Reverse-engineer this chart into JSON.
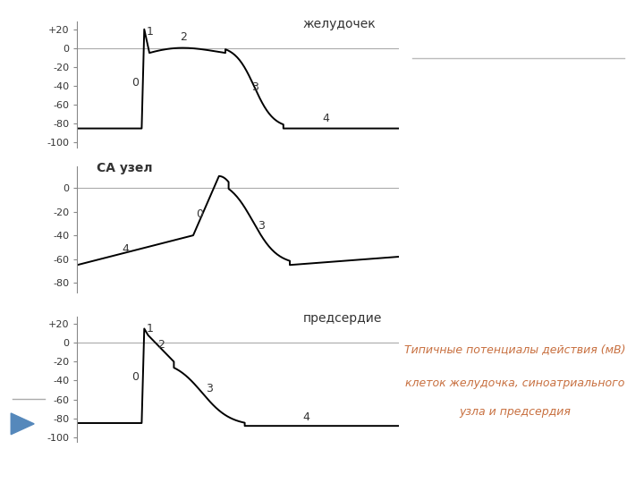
{
  "title_ventricle": "желудочек",
  "title_sa": "СА узел",
  "title_atrium": "предсердие",
  "caption_line1": "Типичные потенциалы действия (мВ)",
  "caption_line2": "клеток желудочка, синоатриального",
  "caption_line3": "узла и предсердия",
  "bg_color": "#ffffff",
  "line_color": "#000000",
  "caption_color": "#c87040",
  "panel1_ylim": [
    -105,
    28
  ],
  "panel2_ylim": [
    -88,
    18
  ],
  "panel3_ylim": [
    -105,
    28
  ],
  "yticks1": [
    -100,
    -80,
    -60,
    -40,
    -20,
    0,
    20
  ],
  "yticks2": [
    -80,
    -60,
    -40,
    -20,
    0
  ],
  "yticks3": [
    -100,
    -80,
    -60,
    -40,
    -20,
    0,
    20
  ]
}
